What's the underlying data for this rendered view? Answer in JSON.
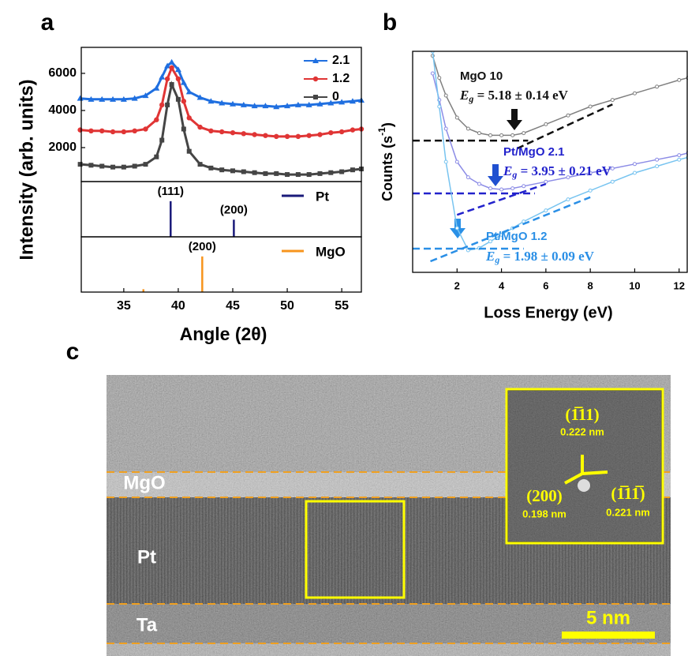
{
  "panel_labels": [
    "a",
    "b",
    "c"
  ],
  "chart_data": [
    {
      "type": "line",
      "ylabel": "Intensity (arb. units)",
      "xlim": [
        31.1,
        56.8
      ],
      "ylim": [
        170,
        7400
      ],
      "yticks": [
        2000,
        4000,
        6000
      ],
      "legend": "upper right",
      "x": [
        31,
        32,
        33,
        34,
        35,
        36,
        37,
        38,
        38.5,
        39,
        39.4,
        40,
        40.5,
        41,
        42,
        43,
        44,
        45,
        46,
        47,
        48,
        49,
        50,
        51,
        52,
        53,
        54,
        55,
        56,
        56.8
      ],
      "series": [
        {
          "name": "2.1",
          "color": "#1f6fe0",
          "marker": "triangle",
          "values": [
            4650,
            4600,
            4600,
            4600,
            4600,
            4650,
            4800,
            5200,
            5800,
            6400,
            6600,
            6200,
            5500,
            5000,
            4700,
            4500,
            4400,
            4350,
            4300,
            4250,
            4250,
            4200,
            4250,
            4300,
            4300,
            4350,
            4400,
            4450,
            4500,
            4550
          ]
        },
        {
          "name": "1.2",
          "color": "#e03535",
          "marker": "circle",
          "values": [
            2950,
            2900,
            2900,
            2850,
            2850,
            2900,
            3000,
            3500,
            4300,
            5700,
            6300,
            5700,
            4500,
            3600,
            3100,
            2900,
            2850,
            2800,
            2750,
            2700,
            2650,
            2600,
            2600,
            2600,
            2650,
            2700,
            2800,
            2850,
            2950,
            3000
          ]
        },
        {
          "name": "0",
          "color": "#454545",
          "marker": "square",
          "values": [
            1100,
            1050,
            1000,
            950,
            950,
            1000,
            1100,
            1500,
            2400,
            4300,
            5400,
            4600,
            3000,
            1800,
            1100,
            900,
            800,
            750,
            700,
            650,
            600,
            600,
            550,
            550,
            550,
            600,
            650,
            700,
            800,
            850
          ]
        }
      ]
    },
    {
      "type": "stick",
      "name": "Pt",
      "color": "#1a1a7a",
      "xlim": [
        31.1,
        56.8
      ],
      "ylim": [
        0,
        155
      ],
      "x": [
        39.3,
        45.1
      ],
      "values": [
        100,
        48
      ],
      "labels": [
        "(111)",
        "(200)"
      ]
    },
    {
      "type": "stick",
      "name": "MgO",
      "color": "#f7941d",
      "xlim": [
        31.1,
        56.8
      ],
      "ylim": [
        0,
        155
      ],
      "x": [
        36.8,
        42.2
      ],
      "values": [
        8,
        100
      ],
      "labels": [
        null,
        "(200)"
      ],
      "xlabel": "Angle (2θ)",
      "xticks": [
        35,
        40,
        45,
        50,
        55
      ]
    },
    {
      "type": "line",
      "xlabel": "Loss Energy (eV)",
      "ylabel": [
        "Counts (s",
        "-1",
        ")"
      ],
      "xlim": [
        0,
        12.4
      ],
      "ylim": [
        0,
        100
      ],
      "xticks": [
        2,
        4,
        6,
        8,
        10,
        12
      ],
      "gap_symbol": "E",
      "gap_subscript": "g",
      "x": [
        0.9,
        1.2,
        1.5,
        2,
        2.5,
        3,
        3.5,
        4,
        4.5,
        5,
        6,
        7,
        8,
        9,
        10,
        11,
        12,
        12.4
      ],
      "series": [
        {
          "name": "MgO 10",
          "color": "#808080",
          "label_color": "#111111",
          "gap": " = 5.18 ± 0.14 eV",
          "values": [
            98,
            88,
            80,
            70,
            65,
            63,
            62,
            62,
            62,
            63,
            67,
            71,
            75,
            78,
            81,
            84,
            87,
            88
          ],
          "baseline": 59.6,
          "baseline_x": [
            0,
            5.2
          ],
          "fit_x": [
            4.7,
            9
          ],
          "fit_y": [
            56,
            76
          ]
        },
        {
          "name": "Pt/MgO 2.1",
          "color": "#8c8ce6",
          "label_color": "#2222cc",
          "gap": " = 3.95 ± 0.21 eV",
          "values": [
            90,
            78,
            65,
            50,
            43,
            40,
            38,
            37.5,
            38,
            39,
            41,
            43,
            45,
            47,
            49,
            51,
            53,
            54
          ],
          "baseline": 35.7,
          "baseline_x": [
            0,
            5.5
          ],
          "fit_x": [
            2,
            6
          ],
          "fit_y": [
            26,
            40
          ]
        },
        {
          "name": "Pt/MgO 1.2",
          "color": "#78c4f0",
          "label_color": "#2a8fe6",
          "gap": " = 1.98 ± 0.09 eV",
          "values": [
            100,
            75,
            50,
            20,
            10,
            11,
            14,
            17,
            20,
            23,
            28,
            33,
            37,
            41,
            45,
            48,
            51,
            52
          ],
          "baseline": 10.7,
          "baseline_x": [
            0,
            5
          ],
          "fit_x": [
            0.8,
            8
          ],
          "fit_y": [
            5,
            34
          ]
        }
      ]
    }
  ],
  "image": {
    "layers": [
      "MgO",
      "Pt",
      "Ta"
    ],
    "scale_bar": "5 nm",
    "inset": [
      {
        "plane": "(1̅11)",
        "spacing": "0.222 nm"
      },
      {
        "plane": "(200)",
        "spacing": "0.198 nm"
      },
      {
        "plane": "(1̅11̅)",
        "spacing": "0.221 nm"
      }
    ]
  }
}
